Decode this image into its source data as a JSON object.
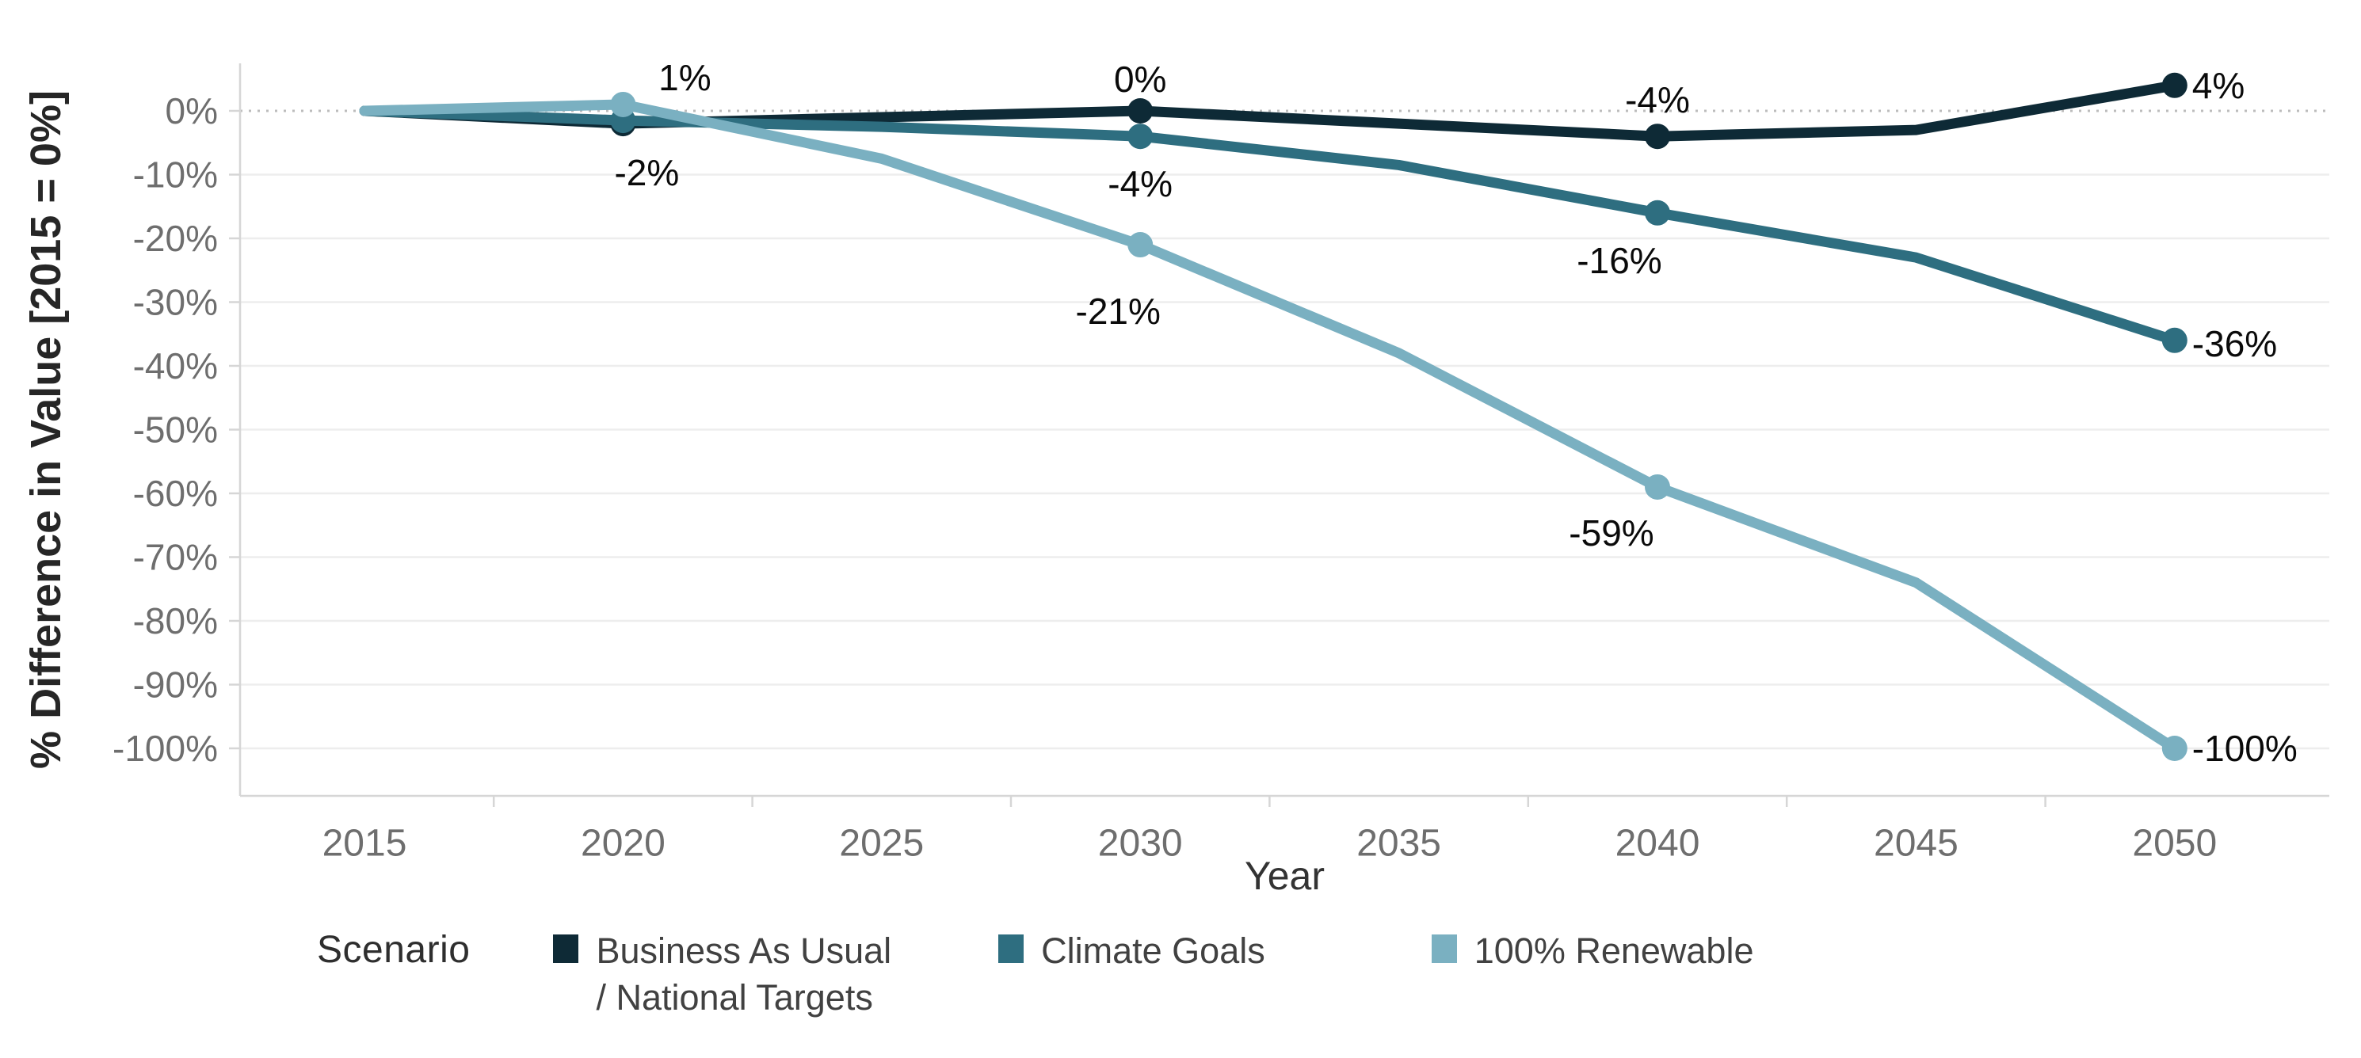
{
  "chart_data": {
    "type": "line",
    "title": "",
    "xlabel": "Year",
    "ylabel": "% Difference in Value [2015 = 0%]",
    "x": [
      2015,
      2020,
      2025,
      2030,
      2035,
      2040,
      2045,
      2050
    ],
    "x_tick_labels": [
      "2015",
      "2020",
      "2025",
      "2030",
      "2035",
      "2040",
      "2045",
      "2050"
    ],
    "y_ticks": [
      0,
      -10,
      -20,
      -30,
      -40,
      -50,
      -60,
      -70,
      -80,
      -90,
      -100
    ],
    "y_tick_labels": [
      "0%",
      "-10%",
      "-20%",
      "-30%",
      "-40%",
      "-50%",
      "-60%",
      "-70%",
      "-80%",
      "-90%",
      "-100%"
    ],
    "ylim": [
      -107.5,
      7.5
    ],
    "grid": true,
    "zero_line": "dotted",
    "legend_position": "bottom",
    "legend": {
      "title": "Scenario"
    },
    "series": [
      {
        "name": "Business As Usual / National Targets",
        "legend_label": "Business As Usual\n/ National Targets",
        "color": "#0e2a36",
        "values": [
          0,
          -2,
          -1,
          0,
          -2,
          -4,
          -3,
          4
        ],
        "marker_indices": [
          1,
          3,
          5,
          7
        ],
        "point_labels": [
          {
            "index": 1,
            "text": "-2%",
            "dx": 30,
            "dy": 62,
            "anchor": "middle"
          },
          {
            "index": 3,
            "text": "0%",
            "dx": 0,
            "dy": -40,
            "anchor": "middle"
          },
          {
            "index": 5,
            "text": "-4%",
            "dx": 0,
            "dy": -46,
            "anchor": "middle"
          },
          {
            "index": 7,
            "text": "4%",
            "dx": 22,
            "dy": 0,
            "anchor": "start"
          }
        ]
      },
      {
        "name": "Climate Goals",
        "legend_label": "Climate Goals",
        "color": "#2e6e80",
        "values": [
          0,
          -1.5,
          -2.5,
          -4,
          -8.5,
          -16,
          -23,
          -36
        ],
        "marker_indices": [
          1,
          3,
          5,
          7
        ],
        "point_labels": [
          {
            "index": 3,
            "text": "-4%",
            "dx": 0,
            "dy": 60,
            "anchor": "middle"
          },
          {
            "index": 5,
            "text": "-16%",
            "dx": -48,
            "dy": 60,
            "anchor": "middle"
          },
          {
            "index": 7,
            "text": "-36%",
            "dx": 22,
            "dy": 4,
            "anchor": "start"
          }
        ]
      },
      {
        "name": "100% Renewable",
        "legend_label": "100% Renewable",
        "color": "#7ab0c1",
        "values": [
          0,
          1,
          -7.5,
          -21,
          -38,
          -59,
          -74,
          -100
        ],
        "marker_indices": [
          1,
          3,
          5,
          7
        ],
        "point_labels": [
          {
            "index": 1,
            "text": "1%",
            "dx": 78,
            "dy": -34,
            "anchor": "middle"
          },
          {
            "index": 3,
            "text": "-21%",
            "dx": -28,
            "dy": 84,
            "anchor": "middle"
          },
          {
            "index": 5,
            "text": "-59%",
            "dx": -58,
            "dy": 58,
            "anchor": "middle"
          },
          {
            "index": 7,
            "text": "-100%",
            "dx": 22,
            "dy": 0,
            "anchor": "start"
          }
        ]
      }
    ]
  },
  "colors": {
    "series_business_as_usual": "#0e2a36",
    "series_climate_goals": "#2e6e80",
    "series_100_renewable": "#7ab0c1",
    "tick_label": "#6e6e6e",
    "axis_title": "#333333",
    "y_axis_title": "#262626",
    "data_label": "#0a0a0a",
    "gridline": "#ededed",
    "zero_line": "#bcbcbc",
    "axis_line": "#d6d6d6",
    "legend_text": "#414141"
  }
}
